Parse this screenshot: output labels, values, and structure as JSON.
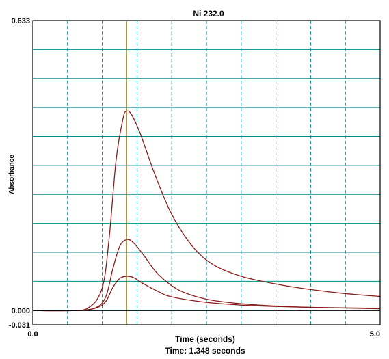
{
  "chart_data": {
    "type": "line",
    "title": "Ni 232.0",
    "xlabel": "Time (seconds)",
    "ylabel": "Absorbance",
    "xlim": [
      0.0,
      5.0
    ],
    "ylim": [
      -0.031,
      0.633
    ],
    "x_tick_labels": [
      "0.0",
      "5.0"
    ],
    "y_tick_labels": [
      "0.633",
      "0.000",
      "-0.031"
    ],
    "grid": true,
    "cursor_x": 1.348,
    "cursor_readout": "Time: 1.348 seconds",
    "colors": {
      "series": "#8b1a1a",
      "cursor": "#8b6914",
      "grid": "#008b8b",
      "axis": "#000000"
    },
    "series": [
      {
        "values": [
          [
            0.0,
            0.0
          ],
          [
            0.5,
            0.0
          ],
          [
            0.8,
            0.006
          ],
          [
            1.0,
            0.05
          ],
          [
            1.1,
            0.16
          ],
          [
            1.2,
            0.33
          ],
          [
            1.3,
            0.42
          ],
          [
            1.35,
            0.435
          ],
          [
            1.42,
            0.428
          ],
          [
            1.55,
            0.385
          ],
          [
            1.75,
            0.3
          ],
          [
            2.0,
            0.21
          ],
          [
            2.3,
            0.14
          ],
          [
            2.6,
            0.1
          ],
          [
            3.0,
            0.075
          ],
          [
            3.5,
            0.058
          ],
          [
            4.0,
            0.046
          ],
          [
            4.5,
            0.037
          ],
          [
            5.0,
            0.031
          ]
        ]
      },
      {
        "values": [
          [
            0.0,
            0.0
          ],
          [
            0.6,
            0.0
          ],
          [
            0.9,
            0.006
          ],
          [
            1.05,
            0.03
          ],
          [
            1.15,
            0.09
          ],
          [
            1.25,
            0.14
          ],
          [
            1.35,
            0.155
          ],
          [
            1.45,
            0.148
          ],
          [
            1.6,
            0.12
          ],
          [
            1.8,
            0.08
          ],
          [
            2.1,
            0.045
          ],
          [
            2.5,
            0.025
          ],
          [
            3.0,
            0.015
          ],
          [
            3.5,
            0.01
          ],
          [
            4.0,
            0.007
          ],
          [
            5.0,
            0.004
          ]
        ]
      },
      {
        "values": [
          [
            0.0,
            0.0
          ],
          [
            0.6,
            0.0
          ],
          [
            0.9,
            0.005
          ],
          [
            1.05,
            0.02
          ],
          [
            1.15,
            0.05
          ],
          [
            1.25,
            0.07
          ],
          [
            1.35,
            0.075
          ],
          [
            1.45,
            0.072
          ],
          [
            1.6,
            0.058
          ],
          [
            1.8,
            0.042
          ],
          [
            2.0,
            0.03
          ],
          [
            2.5,
            0.018
          ],
          [
            3.0,
            0.012
          ],
          [
            3.5,
            0.009
          ],
          [
            4.0,
            0.007
          ],
          [
            5.0,
            0.005
          ]
        ]
      }
    ]
  }
}
